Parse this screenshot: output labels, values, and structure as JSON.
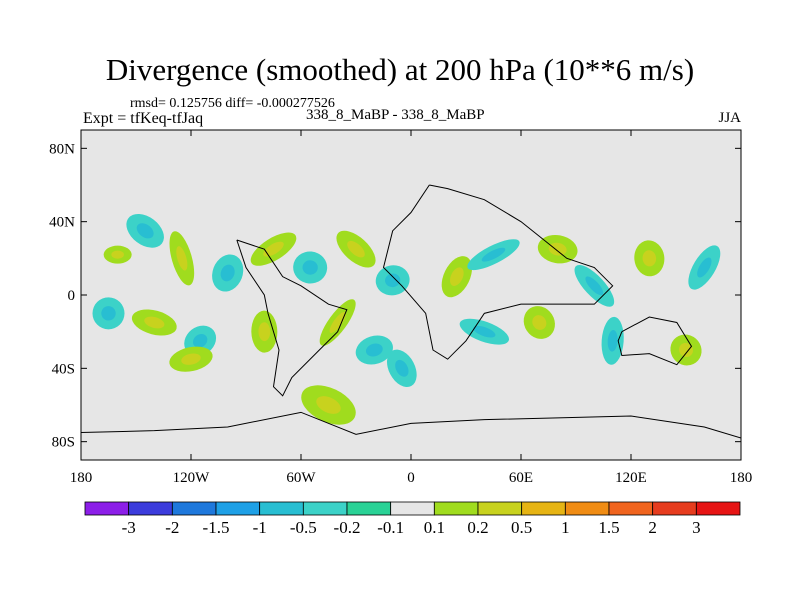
{
  "header": {
    "title": "Divergence (smoothed) at 200 hPa (10**6 m/s)",
    "stats": "rmsd= 0.125756 diff= -0.000277526",
    "left_label": "Expt = tfKeq-tfJaq",
    "center_label": "338_8_MaBP - 338_8_MaBP",
    "right_label": "JJA"
  },
  "chart_data": {
    "type": "heatmap",
    "title": "Divergence (smoothed) at 200 hPa (10**6 m/s)",
    "xlim": [
      -180,
      180
    ],
    "ylim": [
      -90,
      90
    ],
    "x_ticks": [
      {
        "value": -180,
        "label": "180"
      },
      {
        "value": -120,
        "label": "120W"
      },
      {
        "value": -60,
        "label": "60W"
      },
      {
        "value": 0,
        "label": "0"
      },
      {
        "value": 60,
        "label": "60E"
      },
      {
        "value": 120,
        "label": "120E"
      },
      {
        "value": 180,
        "label": "180"
      }
    ],
    "y_ticks": [
      {
        "value": 80,
        "label": "80N"
      },
      {
        "value": 40,
        "label": "40N"
      },
      {
        "value": 0,
        "label": "0"
      },
      {
        "value": -40,
        "label": "40S"
      },
      {
        "value": -80,
        "label": "80S"
      }
    ],
    "background_color": "#e6e6e6",
    "colorbar": {
      "labels": [
        "-3",
        "-2",
        "-1.5",
        "-1",
        "-0.5",
        "-0.2",
        "-0.1",
        "0.1",
        "0.2",
        "0.5",
        "1",
        "1.5",
        "2",
        "3"
      ],
      "colors": [
        "#8c1ee8",
        "#3c3cdc",
        "#1e78dc",
        "#1ea0e6",
        "#28bed2",
        "#3cd2c8",
        "#2ad296",
        "#e6e6e6",
        "#a0dc1e",
        "#c8d21e",
        "#e6b414",
        "#f08c14",
        "#f0641e",
        "#e63c1e",
        "#e61414"
      ]
    },
    "blobs": [
      {
        "lon": -160,
        "lat": 22,
        "value": 0.3
      },
      {
        "lon": -145,
        "lat": 35,
        "value": -0.3
      },
      {
        "lon": -125,
        "lat": 20,
        "value": 0.35
      },
      {
        "lon": -100,
        "lat": 12,
        "value": -0.3
      },
      {
        "lon": -75,
        "lat": 25,
        "value": 0.3
      },
      {
        "lon": -55,
        "lat": 15,
        "value": -0.3
      },
      {
        "lon": -30,
        "lat": 25,
        "value": 0.3
      },
      {
        "lon": -10,
        "lat": 8,
        "value": -0.3
      },
      {
        "lon": 25,
        "lat": 10,
        "value": 0.4
      },
      {
        "lon": 45,
        "lat": 22,
        "value": -0.35
      },
      {
        "lon": 80,
        "lat": 25,
        "value": 0.3
      },
      {
        "lon": 100,
        "lat": 5,
        "value": -0.3
      },
      {
        "lon": 130,
        "lat": 20,
        "value": 0.3
      },
      {
        "lon": 160,
        "lat": 15,
        "value": -0.3
      },
      {
        "lon": -165,
        "lat": -10,
        "value": -0.3
      },
      {
        "lon": -140,
        "lat": -15,
        "value": 0.3
      },
      {
        "lon": -115,
        "lat": -25,
        "value": -0.3
      },
      {
        "lon": -80,
        "lat": -20,
        "value": 0.3
      },
      {
        "lon": -40,
        "lat": -15,
        "value": 0.3
      },
      {
        "lon": -20,
        "lat": -30,
        "value": -0.3
      },
      {
        "lon": 40,
        "lat": -20,
        "value": -0.3
      },
      {
        "lon": 70,
        "lat": -15,
        "value": 0.3
      },
      {
        "lon": 110,
        "lat": -25,
        "value": -0.3
      },
      {
        "lon": 150,
        "lat": -30,
        "value": 0.3
      },
      {
        "lon": -120,
        "lat": -35,
        "value": 0.3
      },
      {
        "lon": -45,
        "lat": -60,
        "value": 0.3
      },
      {
        "lon": -5,
        "lat": -40,
        "value": -0.3
      }
    ]
  }
}
